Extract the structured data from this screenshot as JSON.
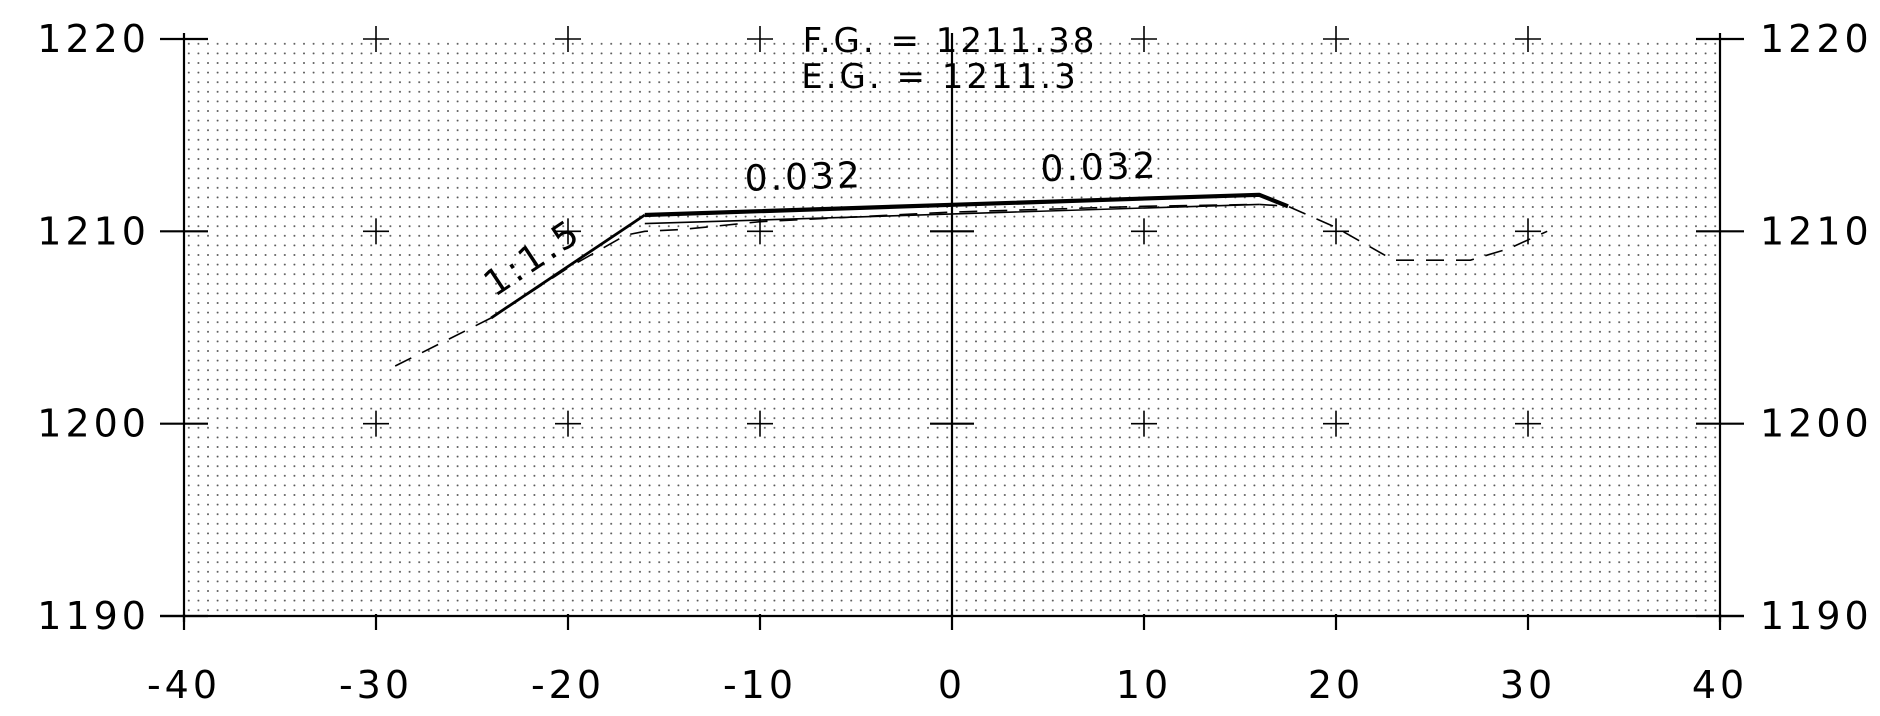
{
  "chart_data": {
    "type": "line",
    "title": "",
    "xlabel": "",
    "ylabel": "",
    "xlim": [
      -40,
      40
    ],
    "ylim": [
      1190,
      1220
    ],
    "x_ticks": [
      -40,
      -30,
      -20,
      -10,
      0,
      10,
      20,
      30,
      40
    ],
    "x_tick_labels": [
      "-40",
      "-30",
      "-20",
      "-10",
      "0",
      "10",
      "20",
      "30",
      "40"
    ],
    "y_ticks": [
      1190,
      1200,
      1210,
      1220
    ],
    "y_tick_labels": [
      "1190",
      "1200",
      "1210",
      "1220"
    ],
    "grid": "dotted",
    "header": {
      "fg": "F.G. = 1211.38",
      "eg": "E.G. = 1211.3"
    },
    "annotations": [
      {
        "text": "0.032",
        "x": -7.7,
        "y": 1212.2,
        "angle": -1.8
      },
      {
        "text": "0.032",
        "x": 7.7,
        "y": 1212.7,
        "angle": -1.8
      },
      {
        "text": "1:1.5",
        "x": -21.5,
        "y": 1208.1,
        "angle": -33.7
      }
    ],
    "series": [
      {
        "style": "solid",
        "weight": "heavy",
        "x": [
          -16,
          0,
          16,
          17.5
        ],
        "y": [
          1210.85,
          1211.38,
          1211.9,
          1211.3
        ]
      },
      {
        "style": "solid",
        "weight": "thin",
        "x": [
          -16,
          16
        ],
        "y": [
          1210.4,
          1211.4
        ]
      },
      {
        "style": "solid",
        "weight": "medium",
        "x": [
          -16,
          -24
        ],
        "y": [
          1210.85,
          1205.5
        ]
      },
      {
        "style": "dashed",
        "weight": "thin",
        "x": [
          -29,
          -24,
          -20,
          -17,
          -16,
          -14,
          -10,
          0,
          10,
          16,
          17.5,
          20,
          23,
          27,
          29,
          31
        ],
        "y": [
          1203,
          1205.5,
          1208.1,
          1209.8,
          1210.0,
          1210.1,
          1210.5,
          1211.0,
          1211.3,
          1211.4,
          1211.3,
          1210.2,
          1208.5,
          1208.5,
          1209.1,
          1210.0
        ]
      }
    ]
  }
}
